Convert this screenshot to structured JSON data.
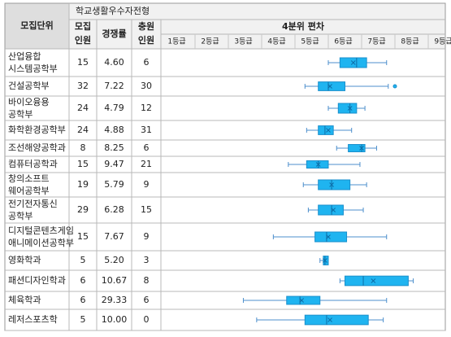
{
  "table": {
    "header": {
      "unit": "모집단위",
      "group": "학교생활우수자전형",
      "recruit": [
        "모집",
        "인원"
      ],
      "competition": "경쟁률",
      "additional": [
        "충원",
        "인원"
      ],
      "quartile": "4분위 편차"
    },
    "grade_labels": [
      "1등급",
      "2등급",
      "3등급",
      "4등급",
      "5등급",
      "6등급",
      "7등급",
      "8등급",
      "9등급"
    ]
  },
  "chart_data": {
    "type": "boxplot",
    "title": "4분위 편차",
    "x_axis": {
      "min": 1,
      "max": 9,
      "tick_labels": [
        "1등급",
        "2등급",
        "3등급",
        "4등급",
        "5등급",
        "6등급",
        "7등급",
        "8등급",
        "9등급"
      ]
    },
    "rows": [
      {
        "unit": [
          "산업융합",
          "시스템공학부"
        ],
        "recruit": "15",
        "competition": "4.60",
        "additional": "6",
        "box": {
          "whisker_low": 5.55,
          "q1": 5.9,
          "median": 6.4,
          "q3": 6.7,
          "whisker_high": 7.3,
          "mean": 6.3,
          "outliers": []
        }
      },
      {
        "unit": [
          "건설공학부"
        ],
        "recruit": "32",
        "competition": "7.22",
        "additional": "30",
        "box": {
          "whisker_low": 4.85,
          "q1": 5.25,
          "median": 5.55,
          "q3": 6.05,
          "whisker_high": 7.35,
          "mean": 5.6,
          "outliers": [
            7.55
          ]
        }
      },
      {
        "unit": [
          "바이오융용",
          "공학부"
        ],
        "recruit": "24",
        "competition": "4.79",
        "additional": "12",
        "box": {
          "whisker_low": 5.55,
          "q1": 5.85,
          "median": 6.2,
          "q3": 6.4,
          "whisker_high": 6.65,
          "mean": 6.2,
          "outliers": []
        }
      },
      {
        "unit": [
          "화학환경공학부"
        ],
        "recruit": "24",
        "competition": "4.88",
        "additional": "31",
        "box": {
          "whisker_low": 4.9,
          "q1": 5.25,
          "median": 5.45,
          "q3": 5.7,
          "whisker_high": 6.25,
          "mean": 5.55,
          "outliers": []
        }
      },
      {
        "unit": [
          "조선해양공학과"
        ],
        "recruit": "8",
        "competition": "8.25",
        "additional": "6",
        "box": {
          "whisker_low": 5.8,
          "q1": 6.15,
          "median": 6.55,
          "q3": 6.65,
          "whisker_high": 7.0,
          "mean": 6.55,
          "outliers": []
        }
      },
      {
        "unit": [
          "컴퓨터공학과"
        ],
        "recruit": "15",
        "competition": "9.47",
        "additional": "21",
        "box": {
          "whisker_low": 4.35,
          "q1": 4.9,
          "median": 5.25,
          "q3": 5.55,
          "whisker_high": 6.5,
          "mean": 5.25,
          "outliers": []
        }
      },
      {
        "unit": [
          "창의소프트",
          "웨어공학부"
        ],
        "recruit": "19",
        "competition": "5.79",
        "additional": "9",
        "box": {
          "whisker_low": 4.8,
          "q1": 5.25,
          "median": 5.65,
          "q3": 6.2,
          "whisker_high": 6.7,
          "mean": 5.65,
          "outliers": []
        }
      },
      {
        "unit": [
          "전기전자통신",
          "공학부"
        ],
        "recruit": "29",
        "competition": "6.28",
        "additional": "15",
        "box": {
          "whisker_low": 4.95,
          "q1": 5.25,
          "median": 5.65,
          "q3": 6.0,
          "whisker_high": 6.6,
          "mean": 5.7,
          "outliers": []
        }
      },
      {
        "unit": [
          "디지털콘텐츠게임",
          "애니메이션공학부"
        ],
        "recruit": "15",
        "competition": "7.67",
        "additional": "9",
        "box": {
          "whisker_low": 3.9,
          "q1": 5.15,
          "median": 5.5,
          "q3": 6.1,
          "whisker_high": 7.3,
          "mean": 5.55,
          "outliers": []
        }
      },
      {
        "unit": [
          "영화학과"
        ],
        "recruit": "5",
        "competition": "5.20",
        "additional": "3",
        "box": {
          "whisker_low": 5.3,
          "q1": 5.4,
          "median": 5.45,
          "q3": 5.55,
          "whisker_high": 5.55,
          "mean": 5.45,
          "outliers": []
        }
      },
      {
        "unit": [
          "패션디자인학과"
        ],
        "recruit": "6",
        "competition": "10.67",
        "additional": "8",
        "box": {
          "whisker_low": 5.9,
          "q1": 6.05,
          "median": 6.6,
          "q3": 7.95,
          "whisker_high": 8.1,
          "mean": 6.9,
          "outliers": []
        }
      },
      {
        "unit": [
          "체육학과"
        ],
        "recruit": "6",
        "competition": "29.33",
        "additional": "6",
        "box": {
          "whisker_low": 3.0,
          "q1": 4.3,
          "median": 4.7,
          "q3": 5.3,
          "whisker_high": 7.3,
          "mean": 4.75,
          "outliers": []
        }
      },
      {
        "unit": [
          "레저스포츠학"
        ],
        "recruit": "5",
        "competition": "10.00",
        "additional": "0",
        "box": {
          "whisker_low": 3.4,
          "q1": 4.85,
          "median": 5.5,
          "q3": 6.75,
          "whisker_high": 7.2,
          "mean": 5.6,
          "outliers": []
        }
      }
    ],
    "colors": {
      "box_fill": "#1fb4f0",
      "box_stroke": "#1a8fcc",
      "whisker": "#4d8fcc",
      "grid": "#c8c8c8"
    }
  }
}
